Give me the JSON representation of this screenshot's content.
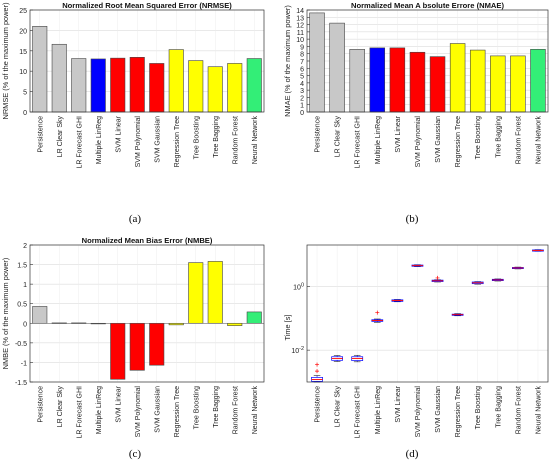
{
  "panel_labels": [
    "(a)",
    "(b)",
    "(c)",
    "(d)"
  ],
  "chart_data": [
    {
      "type": "bar",
      "title": "Normalized Root Mean Squared Error (NRMSE)",
      "ylabel": "NRMSE (% of the maximum power)",
      "ylim": [
        0,
        25
      ],
      "yticks": [
        0,
        5,
        10,
        15,
        20,
        25
      ],
      "grid": true,
      "categories": [
        "Persistence",
        "LR Clear Sky",
        "LR Forecast GHI",
        "Multiple LinReg",
        "SVM Linear",
        "SVM Polynomial",
        "SVM Gaussian",
        "Regression Tree",
        "Tree Boosting",
        "Tree Bagging",
        "Random Forest",
        "Neural Network"
      ],
      "values": [
        21.0,
        16.6,
        13.1,
        13.0,
        13.2,
        13.4,
        11.9,
        15.3,
        12.6,
        11.1,
        11.9,
        13.1
      ],
      "colors": [
        "#c8c8c8",
        "#c8c8c8",
        "#c8c8c8",
        "#0000ff",
        "#ff0000",
        "#ff0000",
        "#ff0000",
        "#ffff00",
        "#ffff00",
        "#ffff00",
        "#ffff00",
        "#33ee77"
      ]
    },
    {
      "type": "bar",
      "title": "Normalized Mean A bsolute Errore (NMAE)",
      "ylabel": "NMAE (% of the maximum power)",
      "ylim": [
        0,
        14
      ],
      "yticks": [
        0,
        1,
        2,
        3,
        4,
        5,
        6,
        7,
        8,
        9,
        10,
        11,
        12,
        13,
        14
      ],
      "grid": true,
      "categories": [
        "Persistence",
        "LR Clear Sky",
        "LR Forecast GHI",
        "Multiple LinReg",
        "SVM Linear",
        "SVM Polynomial",
        "SVM Gaussian",
        "Regression Tree",
        "Tree Boosting",
        "Tree Bagging",
        "Random Forest",
        "Neural Network"
      ],
      "values": [
        13.6,
        12.2,
        8.6,
        8.8,
        8.8,
        8.2,
        7.6,
        9.4,
        8.5,
        7.7,
        7.7,
        8.6
      ],
      "colors": [
        "#c8c8c8",
        "#c8c8c8",
        "#c8c8c8",
        "#0000ff",
        "#ff0000",
        "#ff0000",
        "#ff0000",
        "#ffff00",
        "#ffff00",
        "#ffff00",
        "#ffff00",
        "#33ee77"
      ]
    },
    {
      "type": "bar",
      "title": "Normalized Mean Bias Error (NMBE)",
      "ylabel": "NMBE (% of the maximum power)",
      "ylim": [
        -1.5,
        2
      ],
      "yticks": [
        -1.5,
        -1,
        -0.5,
        0,
        0.5,
        1,
        1.5,
        2
      ],
      "grid": true,
      "categories": [
        "Persistence",
        "LR Clear Sky",
        "LR Forecast GHI",
        "Multiple LinReg",
        "SVM Linear",
        "SVM Polynomial",
        "SVM Gaussian",
        "Regression Tree",
        "Tree Boosting",
        "Tree Bagging",
        "Random Forest",
        "Neural Network"
      ],
      "values": [
        0.43,
        0.01,
        0.01,
        -0.01,
        -1.43,
        -1.2,
        -1.07,
        -0.04,
        1.55,
        1.58,
        -0.06,
        0.29
      ],
      "colors": [
        "#c8c8c8",
        "#c8c8c8",
        "#c8c8c8",
        "#0000ff",
        "#ff0000",
        "#ff0000",
        "#ff0000",
        "#ffff00",
        "#ffff00",
        "#ffff00",
        "#ffff00",
        "#33ee77"
      ]
    },
    {
      "type": "box",
      "title": "",
      "ylabel": "Time [s]",
      "yscale": "log",
      "ylim": [
        0.001,
        20
      ],
      "yticks": [
        0.01,
        1
      ],
      "ytick_labels": [
        "10^-2",
        "10^0"
      ],
      "grid": true,
      "categories": [
        "Persistence",
        "LR Clear Sky",
        "LR Forecast GHI",
        "Multiple LinReg",
        "SVM Linear",
        "SVM Polynomial",
        "SVM Gaussian",
        "Regression Tree",
        "Tree Boosting",
        "Tree Bagging",
        "Random Forest",
        "Neural Network"
      ],
      "boxes": [
        {
          "median": 0.0012,
          "q1": 0.00105,
          "q3": 0.0014,
          "low": 0.001,
          "high": 0.0016,
          "outliers": [
            0.0035,
            0.0022
          ]
        },
        {
          "median": 0.0055,
          "q1": 0.0048,
          "q3": 0.0062,
          "low": 0.0044,
          "high": 0.0068,
          "outliers": []
        },
        {
          "median": 0.0055,
          "q1": 0.0047,
          "q3": 0.0062,
          "low": 0.0043,
          "high": 0.0069,
          "outliers": []
        },
        {
          "median": 0.085,
          "q1": 0.08,
          "q3": 0.09,
          "low": 0.075,
          "high": 0.095,
          "outliers": [
            0.15
          ]
        },
        {
          "median": 0.36,
          "q1": 0.34,
          "q3": 0.38,
          "low": 0.33,
          "high": 0.39,
          "outliers": []
        },
        {
          "median": 4.5,
          "q1": 4.3,
          "q3": 4.7,
          "low": 4.2,
          "high": 4.8,
          "outliers": []
        },
        {
          "median": 1.5,
          "q1": 1.42,
          "q3": 1.58,
          "low": 1.38,
          "high": 1.62,
          "outliers": [
            1.85
          ]
        },
        {
          "median": 0.13,
          "q1": 0.125,
          "q3": 0.135,
          "low": 0.12,
          "high": 0.14,
          "outliers": []
        },
        {
          "median": 1.3,
          "q1": 1.22,
          "q3": 1.38,
          "low": 1.18,
          "high": 1.42,
          "outliers": []
        },
        {
          "median": 1.6,
          "q1": 1.52,
          "q3": 1.68,
          "low": 1.48,
          "high": 1.72,
          "outliers": []
        },
        {
          "median": 3.8,
          "q1": 3.65,
          "q3": 3.95,
          "low": 3.55,
          "high": 4.05,
          "outliers": []
        },
        {
          "median": 13.5,
          "q1": 13.0,
          "q3": 14.0,
          "low": 12.7,
          "high": 14.3,
          "outliers": []
        }
      ],
      "box_color": "#0000ff",
      "median_color": "#ff0000",
      "outlier_color": "#ff0000"
    }
  ]
}
